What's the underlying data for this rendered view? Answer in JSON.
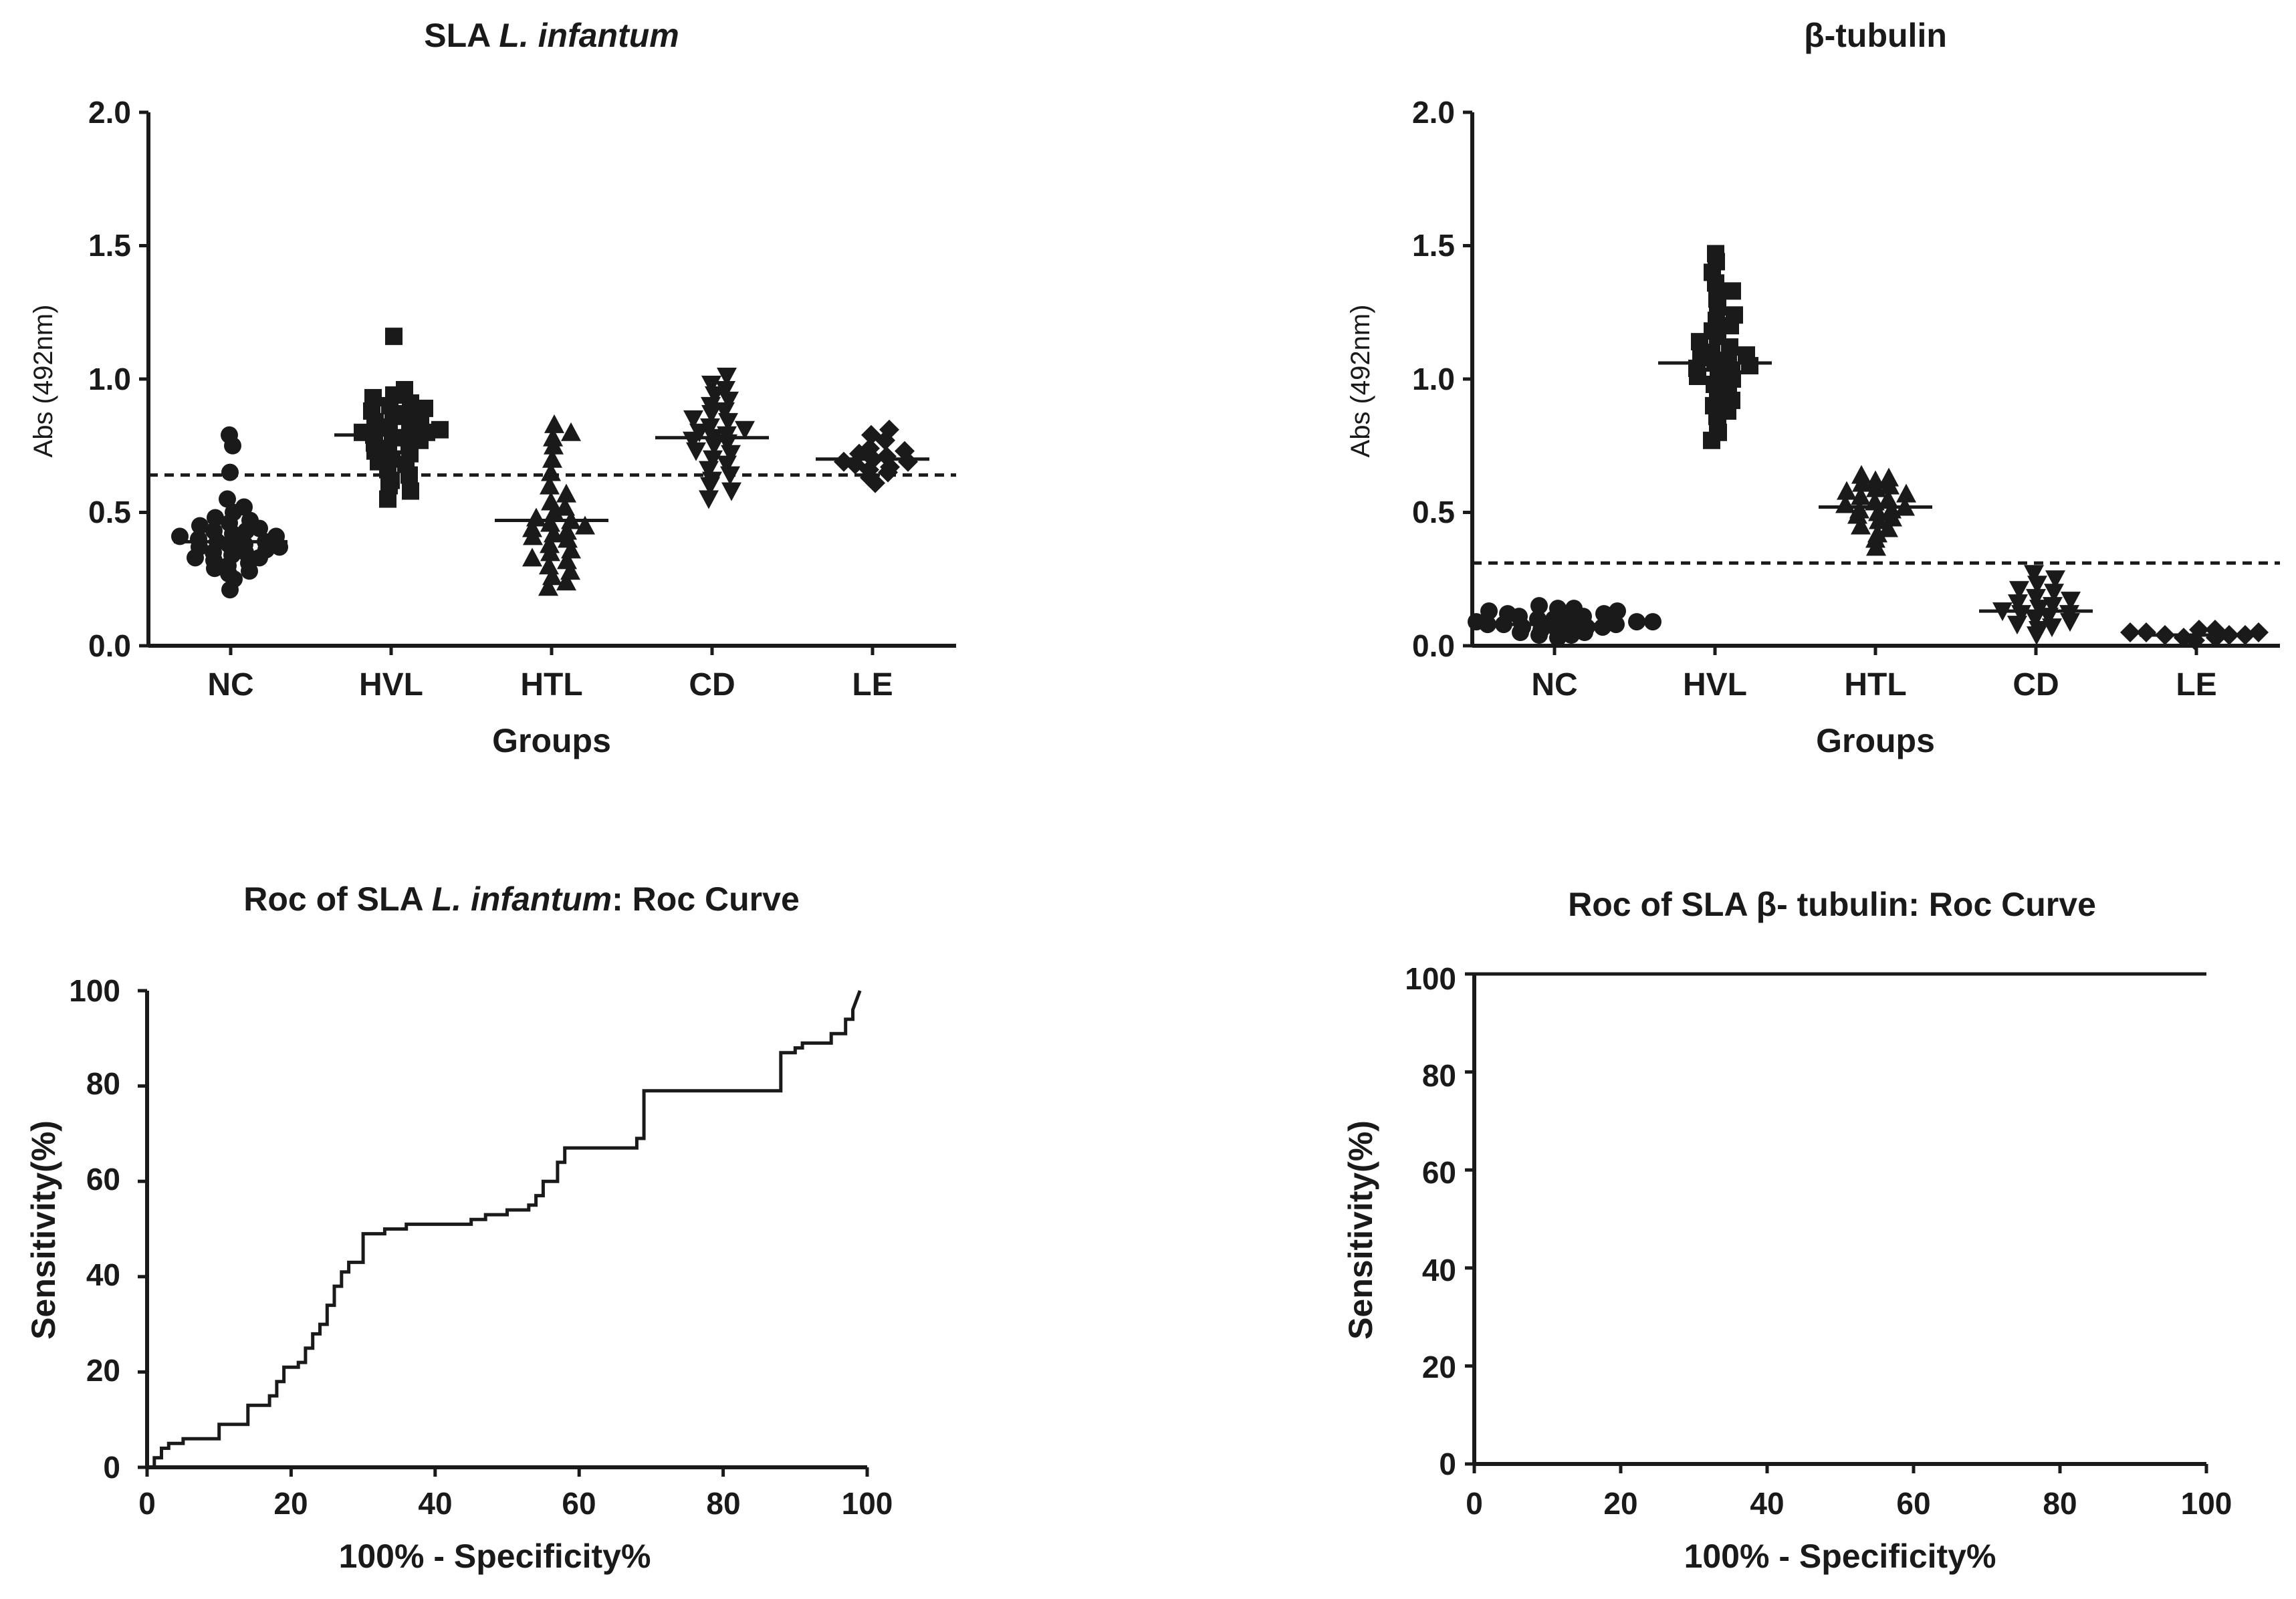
{
  "chart_data": [
    {
      "type": "scatter",
      "title": "SLA L. infantum",
      "title_plain": "SLA ",
      "title_italic": "L. infantum",
      "xlabel": "Groups",
      "ylabel": "Abs (492nm)",
      "ylim": [
        0,
        2.0
      ],
      "yticks": [
        "0.0",
        "0.5",
        "1.0",
        "1.5",
        "2.0"
      ],
      "cutoff": 0.64,
      "categories": [
        "NC",
        "HVL",
        "HTL",
        "CD",
        "LE"
      ],
      "series": [
        {
          "name": "NC",
          "marker": "circle",
          "mean": 0.39,
          "values": [
            0.21,
            0.25,
            0.27,
            0.28,
            0.29,
            0.3,
            0.31,
            0.32,
            0.33,
            0.33,
            0.34,
            0.35,
            0.35,
            0.36,
            0.37,
            0.37,
            0.38,
            0.38,
            0.39,
            0.39,
            0.4,
            0.41,
            0.41,
            0.42,
            0.43,
            0.43,
            0.44,
            0.45,
            0.46,
            0.47,
            0.48,
            0.5,
            0.52,
            0.55,
            0.65,
            0.75,
            0.79
          ]
        },
        {
          "name": "HVL",
          "marker": "square",
          "mean": 0.79,
          "values": [
            0.55,
            0.58,
            0.6,
            0.62,
            0.64,
            0.66,
            0.68,
            0.69,
            0.7,
            0.72,
            0.73,
            0.74,
            0.75,
            0.76,
            0.77,
            0.78,
            0.78,
            0.79,
            0.8,
            0.8,
            0.81,
            0.82,
            0.83,
            0.84,
            0.85,
            0.86,
            0.87,
            0.88,
            0.89,
            0.9,
            0.91,
            0.93,
            0.94,
            0.96,
            1.16
          ]
        },
        {
          "name": "HTL",
          "marker": "triangle",
          "mean": 0.47,
          "values": [
            0.22,
            0.24,
            0.26,
            0.28,
            0.3,
            0.32,
            0.33,
            0.35,
            0.36,
            0.38,
            0.4,
            0.41,
            0.42,
            0.43,
            0.44,
            0.45,
            0.46,
            0.47,
            0.48,
            0.5,
            0.52,
            0.54,
            0.57,
            0.6,
            0.65,
            0.7,
            0.75,
            0.78,
            0.8,
            0.83
          ]
        },
        {
          "name": "CD",
          "marker": "triangle-down",
          "mean": 0.78,
          "values": [
            0.55,
            0.58,
            0.6,
            0.62,
            0.64,
            0.66,
            0.68,
            0.7,
            0.72,
            0.73,
            0.75,
            0.76,
            0.77,
            0.78,
            0.79,
            0.8,
            0.81,
            0.82,
            0.84,
            0.85,
            0.87,
            0.88,
            0.9,
            0.92,
            0.94,
            0.96,
            0.98,
            1.01
          ]
        },
        {
          "name": "LE",
          "marker": "diamond",
          "mean": 0.7,
          "values": [
            0.61,
            0.63,
            0.65,
            0.66,
            0.67,
            0.68,
            0.69,
            0.69,
            0.7,
            0.71,
            0.72,
            0.73,
            0.74,
            0.77,
            0.79,
            0.81
          ]
        }
      ]
    },
    {
      "type": "scatter",
      "title": "β-tubulin",
      "xlabel": "Groups",
      "ylabel": "Abs (492nm)",
      "ylim": [
        0,
        2.0
      ],
      "yticks": [
        "0.0",
        "0.5",
        "1.0",
        "1.5",
        "2.0"
      ],
      "cutoff": 0.31,
      "categories": [
        "NC",
        "HVL",
        "HTL",
        "CD",
        "LE"
      ],
      "series": [
        {
          "name": "NC",
          "marker": "circle",
          "mean": 0.08,
          "values": [
            0.03,
            0.04,
            0.04,
            0.05,
            0.05,
            0.06,
            0.06,
            0.06,
            0.07,
            0.07,
            0.07,
            0.08,
            0.08,
            0.08,
            0.09,
            0.09,
            0.09,
            0.1,
            0.1,
            0.1,
            0.11,
            0.11,
            0.12,
            0.12,
            0.13,
            0.13,
            0.14,
            0.14,
            0.15
          ]
        },
        {
          "name": "HVL",
          "marker": "square",
          "mean": 1.06,
          "values": [
            0.77,
            0.8,
            0.83,
            0.86,
            0.88,
            0.9,
            0.92,
            0.94,
            0.96,
            0.98,
            1.0,
            1.01,
            1.02,
            1.03,
            1.04,
            1.05,
            1.06,
            1.07,
            1.08,
            1.09,
            1.1,
            1.12,
            1.14,
            1.16,
            1.18,
            1.2,
            1.22,
            1.24,
            1.27,
            1.3,
            1.33,
            1.36,
            1.4,
            1.44,
            1.47
          ]
        },
        {
          "name": "HTL",
          "marker": "triangle",
          "mean": 0.52,
          "values": [
            0.37,
            0.4,
            0.42,
            0.44,
            0.45,
            0.47,
            0.48,
            0.49,
            0.5,
            0.51,
            0.51,
            0.52,
            0.53,
            0.54,
            0.55,
            0.56,
            0.57,
            0.58,
            0.59,
            0.6,
            0.61,
            0.62,
            0.63,
            0.64
          ]
        },
        {
          "name": "CD",
          "marker": "triangle-down",
          "mean": 0.13,
          "values": [
            0.04,
            0.06,
            0.07,
            0.08,
            0.09,
            0.1,
            0.11,
            0.12,
            0.12,
            0.13,
            0.14,
            0.15,
            0.16,
            0.17,
            0.18,
            0.2,
            0.21,
            0.23,
            0.25,
            0.27
          ]
        },
        {
          "name": "LE",
          "marker": "diamond",
          "mean": 0.04,
          "values": [
            0.02,
            0.03,
            0.03,
            0.04,
            0.04,
            0.04,
            0.05,
            0.05,
            0.05,
            0.06,
            0.06
          ]
        }
      ]
    },
    {
      "type": "line",
      "title": "Roc of SLA L. infantum: Roc Curve",
      "title_parts": [
        "Roc of SLA ",
        "L. infantum",
        ": Roc Curve"
      ],
      "xlabel": "100% - Specificity%",
      "ylabel": "Sensitivity(%)",
      "xlim": [
        0,
        100
      ],
      "ylim": [
        0,
        100
      ],
      "xticks": [
        "0",
        "20",
        "40",
        "60",
        "80",
        "100"
      ],
      "yticks": [
        "0",
        "20",
        "40",
        "60",
        "80",
        "100"
      ],
      "x": [
        0,
        1,
        1,
        2,
        2,
        3,
        3,
        5,
        5,
        10,
        10,
        14,
        14,
        17,
        17,
        18,
        18,
        19,
        19,
        21,
        21,
        22,
        22,
        23,
        23,
        24,
        24,
        25,
        25,
        26,
        26,
        27,
        27,
        28,
        28,
        30,
        30,
        33,
        33,
        36,
        36,
        45,
        45,
        47,
        47,
        50,
        50,
        53,
        53,
        54,
        54,
        55,
        55,
        57,
        57,
        58,
        58,
        68,
        68,
        69,
        69,
        88,
        88,
        90,
        90,
        91,
        91,
        95,
        95,
        97,
        97,
        98,
        98
      ],
      "y": [
        0,
        0,
        2,
        2,
        4,
        4,
        5,
        5,
        6,
        6,
        9,
        9,
        13,
        13,
        15,
        15,
        18,
        18,
        21,
        21,
        22,
        22,
        25,
        25,
        28,
        28,
        30,
        30,
        34,
        34,
        38,
        38,
        41,
        41,
        43,
        43,
        49,
        49,
        50,
        50,
        51,
        51,
        52,
        52,
        53,
        53,
        54,
        54,
        55,
        55,
        57,
        57,
        60,
        60,
        64,
        64,
        67,
        67,
        69,
        69,
        79,
        79,
        87,
        87,
        88,
        88,
        89,
        89,
        91,
        91,
        94,
        94,
        96
      ]
    },
    {
      "type": "line",
      "title": "Roc of SLA β- tubulin: Roc Curve",
      "xlabel": "100% - Specificity%",
      "ylabel": "Sensitivity(%)",
      "xlim": [
        0,
        100
      ],
      "ylim": [
        0,
        100
      ],
      "xticks": [
        "0",
        "20",
        "40",
        "60",
        "80",
        "100"
      ],
      "yticks": [
        "0",
        "20",
        "40",
        "60",
        "80",
        "100"
      ],
      "x": [
        0,
        0,
        100
      ],
      "y": [
        0,
        100,
        100
      ]
    }
  ]
}
